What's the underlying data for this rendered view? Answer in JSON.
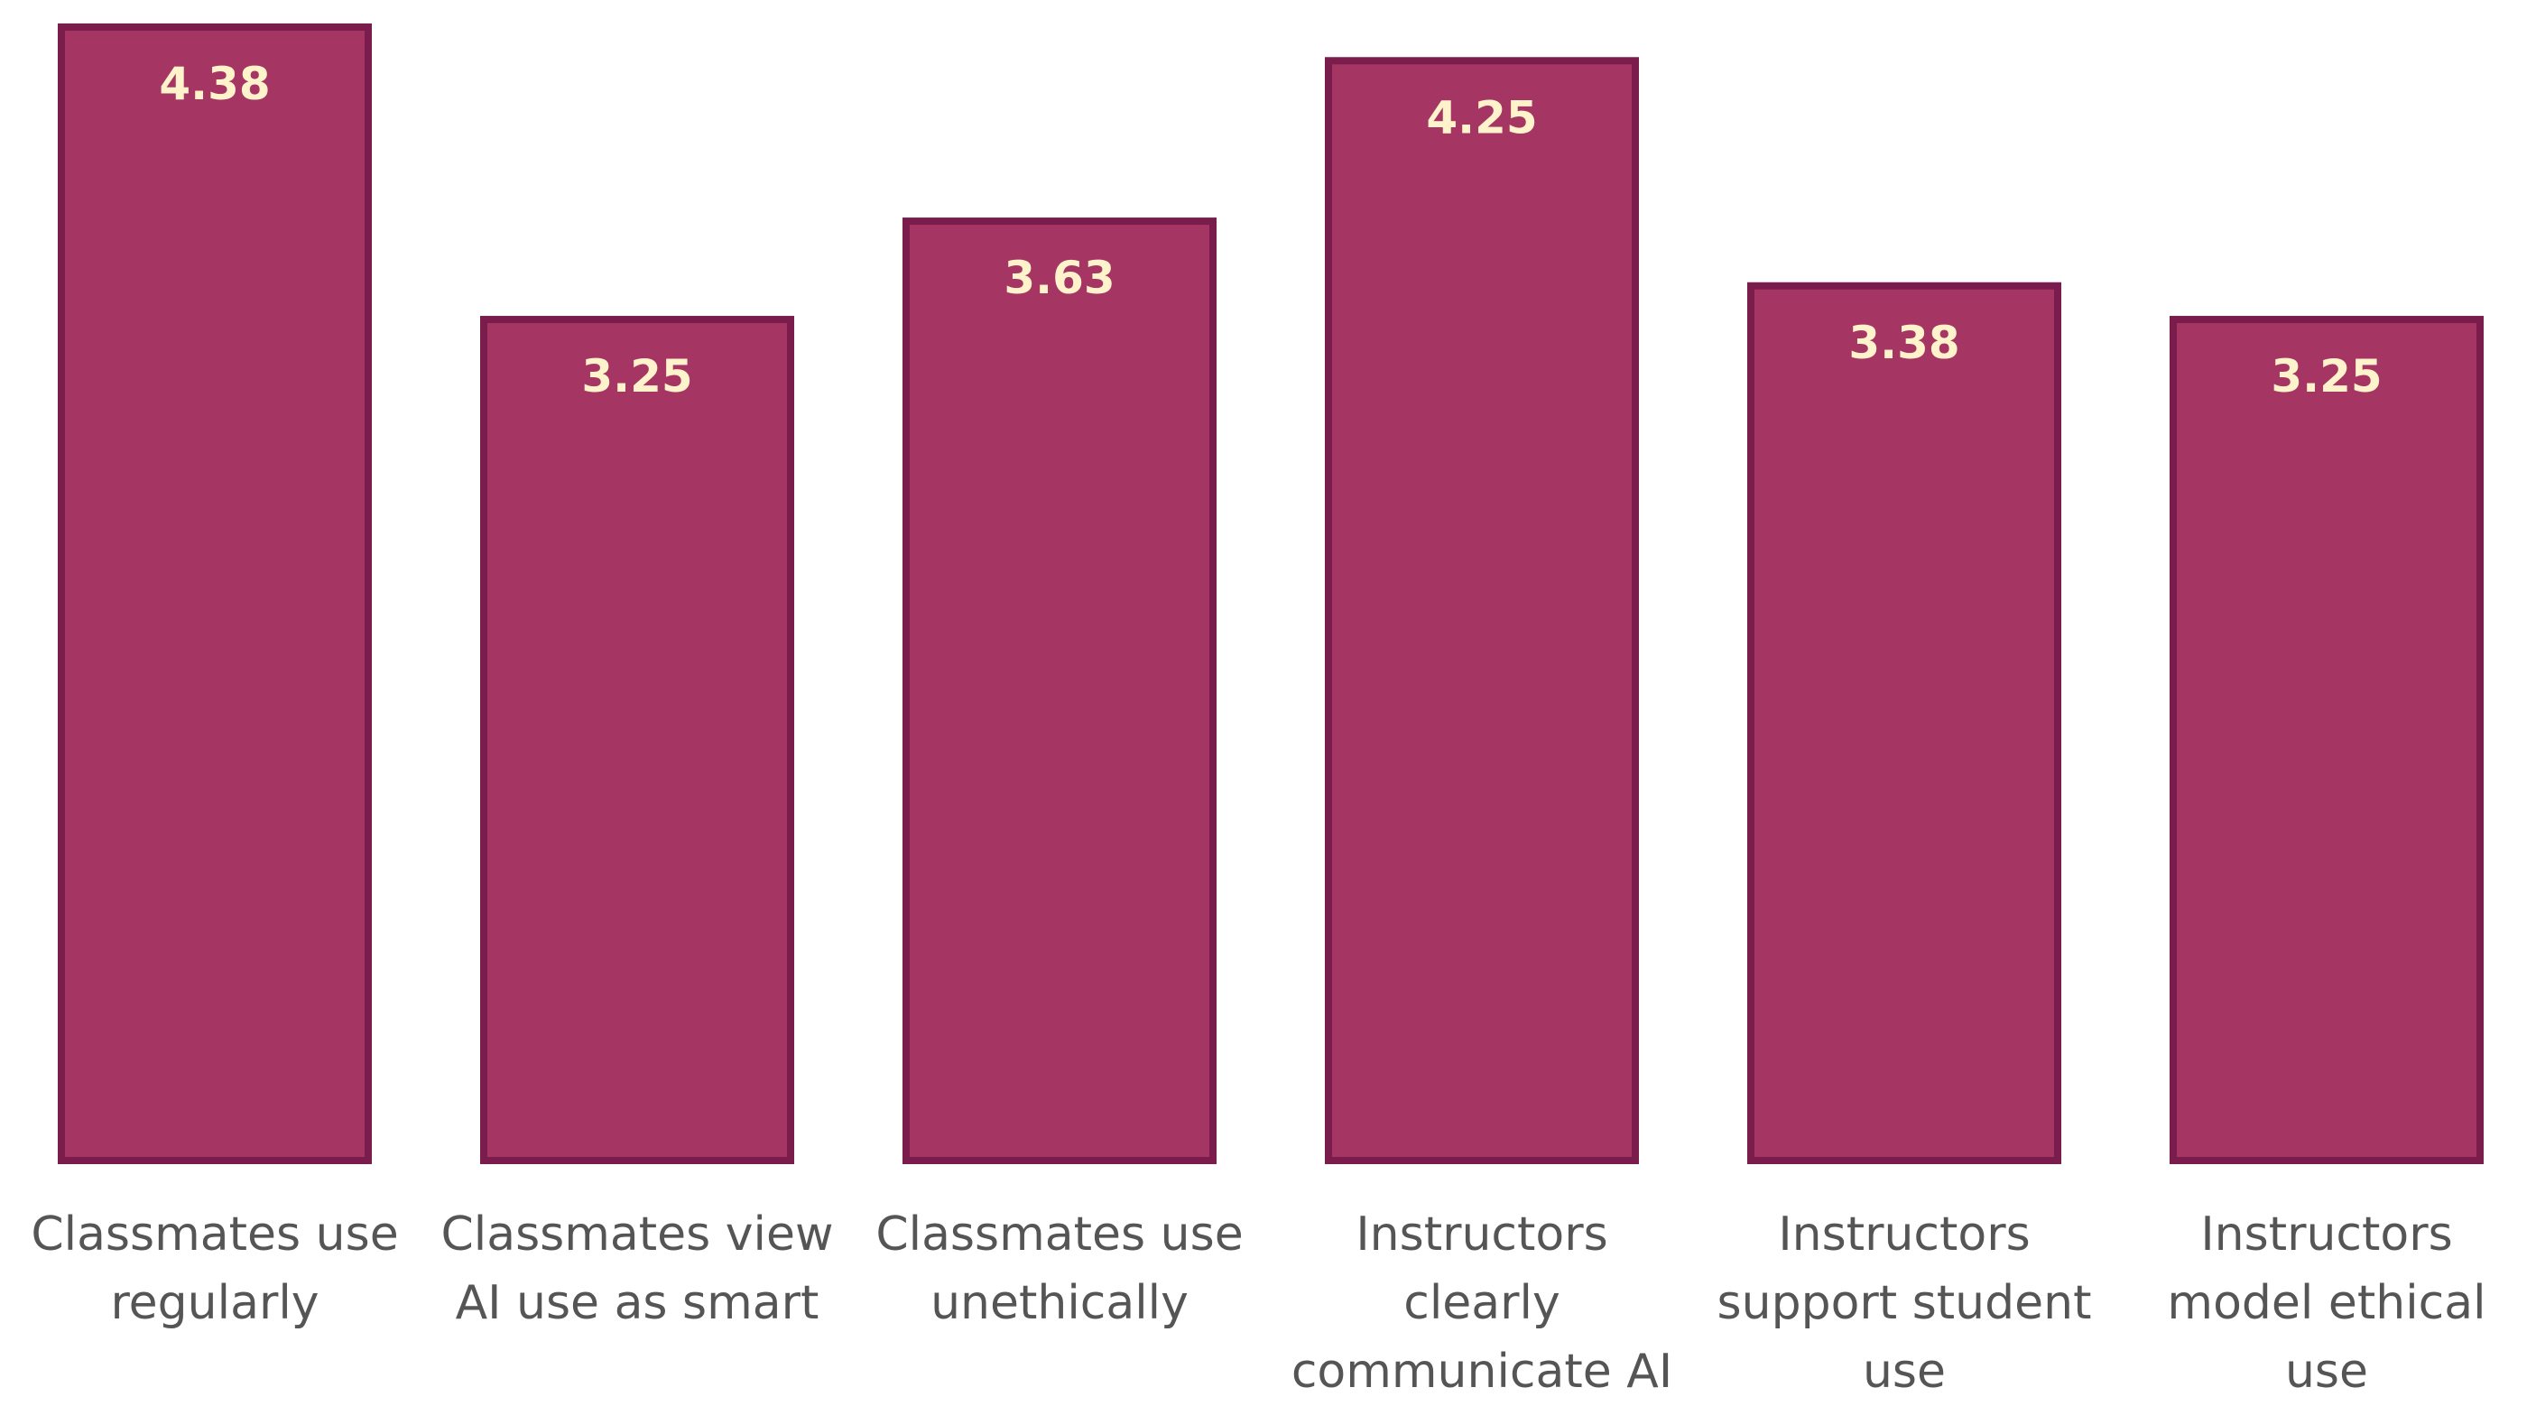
{
  "chart_data": {
    "type": "bar",
    "title": "",
    "xlabel": "",
    "ylabel": "",
    "ylim": [
      0,
      4.38
    ],
    "grid": false,
    "categories": [
      "Classmates use regularly",
      "Classmates view AI use as smart",
      "Classmates use unethically",
      "Instructors clearly communicate AI",
      "Instructors support student use",
      "Instructors model ethical use"
    ],
    "values": [
      4.38,
      3.25,
      3.63,
      4.25,
      3.38,
      3.25
    ],
    "data_labels": [
      "4.38",
      "3.25",
      "3.63",
      "4.25",
      "3.38",
      "3.25"
    ]
  },
  "colors": {
    "bar_fill": "#a53562",
    "bar_stroke": "#7a1c4c",
    "value_label": "#fff3cc",
    "category_label": "#555555"
  }
}
